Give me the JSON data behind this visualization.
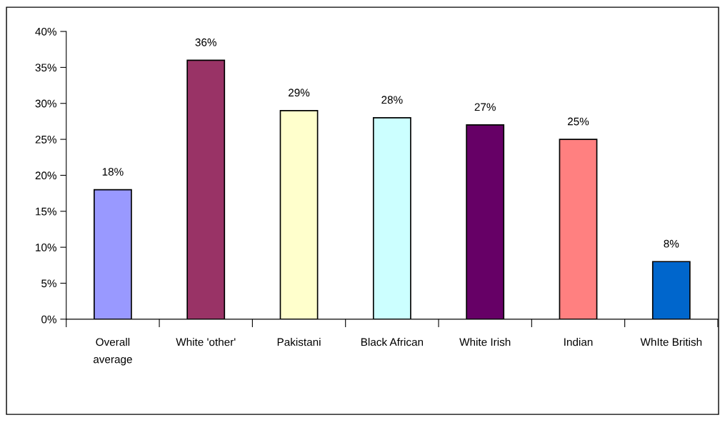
{
  "chart_data": {
    "type": "bar",
    "categories": [
      "Overall\naverage",
      "White 'other'",
      "Pakistani",
      "Black African",
      "White Irish",
      "Indian",
      "WhIte British"
    ],
    "values": [
      18,
      36,
      29,
      28,
      27,
      25,
      8
    ],
    "colors": [
      "#9999ff",
      "#993366",
      "#ffffcc",
      "#ccffff",
      "#660066",
      "#ff8080",
      "#0066cc"
    ],
    "value_labels": [
      "18%",
      "36%",
      "29%",
      "28%",
      "27%",
      "25%",
      "8%"
    ],
    "ylim": [
      0,
      40
    ],
    "yticks": [
      {
        "value": 0,
        "label": "0%"
      },
      {
        "value": 5,
        "label": "5%"
      },
      {
        "value": 10,
        "label": "10%"
      },
      {
        "value": 15,
        "label": "15%"
      },
      {
        "value": 20,
        "label": "20%"
      },
      {
        "value": 25,
        "label": "25%"
      },
      {
        "value": 30,
        "label": "30%"
      },
      {
        "value": 35,
        "label": "35%"
      },
      {
        "value": 40,
        "label": "40%"
      }
    ],
    "grid": false,
    "legend": false
  }
}
